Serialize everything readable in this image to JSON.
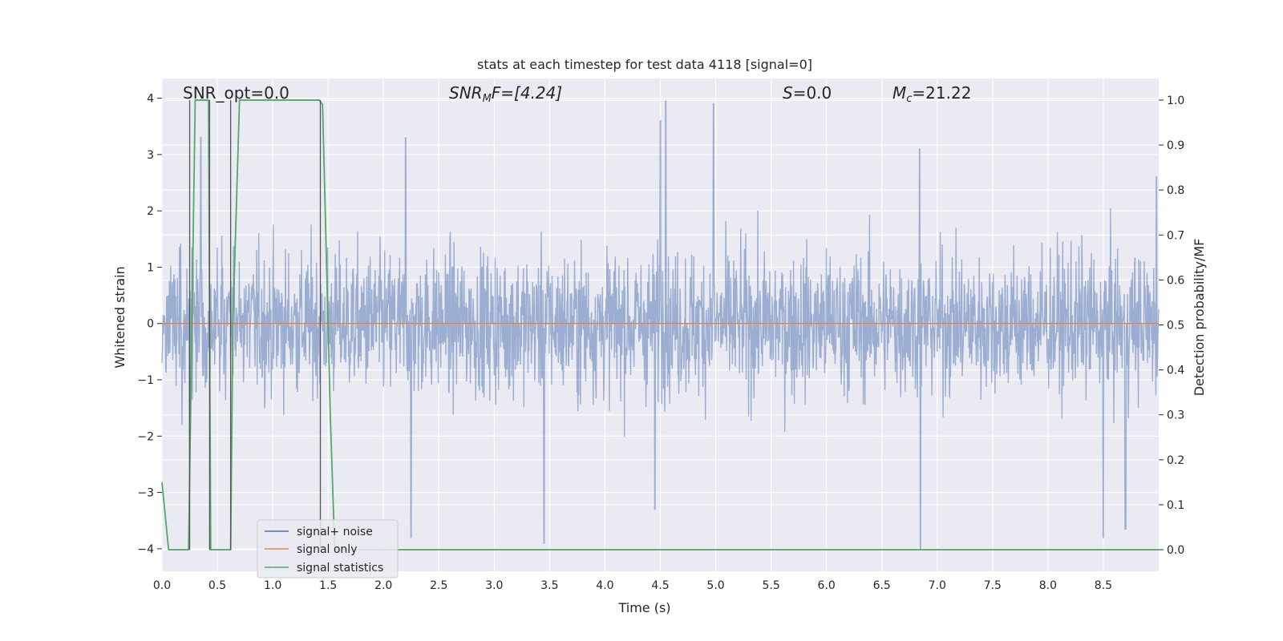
{
  "chart_data": {
    "type": "line",
    "title": "stats at each timestep for test data 4118 [signal=0]",
    "xlabel": "Time (s)",
    "ylabel": "Whitened strain",
    "y2label": "Detection probability/MF",
    "xlim": [
      0,
      9.0
    ],
    "ylim": [
      -4.4,
      4.35
    ],
    "y2lim": [
      -0.048,
      1.048
    ],
    "grid": true,
    "x_ticks": [
      0.0,
      0.5,
      1.0,
      1.5,
      2.0,
      2.5,
      3.0,
      3.5,
      4.0,
      4.5,
      5.0,
      5.5,
      6.0,
      6.5,
      7.0,
      7.5,
      8.0,
      8.5
    ],
    "x_tick_labels": [
      "0.0",
      "0.5",
      "1.0",
      "1.5",
      "2.0",
      "2.5",
      "3.0",
      "3.5",
      "4.0",
      "4.5",
      "5.0",
      "5.5",
      "6.0",
      "6.5",
      "7.0",
      "7.5",
      "8.0",
      "8.5"
    ],
    "y_ticks": [
      -4,
      -3,
      -2,
      -1,
      0,
      1,
      2,
      3,
      4
    ],
    "y_tick_labels": [
      "−4",
      "−3",
      "−2",
      "−1",
      "0",
      "1",
      "2",
      "3",
      "4"
    ],
    "y2_ticks": [
      0.0,
      0.1,
      0.2,
      0.3,
      0.4,
      0.5,
      0.6,
      0.7,
      0.8,
      0.9,
      1.0
    ],
    "y2_tick_labels": [
      "0.0",
      "0.1",
      "0.2",
      "0.3",
      "0.4",
      "0.5",
      "0.6",
      "0.7",
      "0.8",
      "0.9",
      "1.0"
    ],
    "annotations": {
      "snr_opt": "SNR_opt=0.0",
      "snr_mf_main": "SNR",
      "snr_mf_sub": "M",
      "snr_mf_rest": "F=[4.24]",
      "s_label": "S",
      "s_value": "=0.0",
      "mc_label": "M",
      "mc_sub": "c",
      "mc_value": "=21.22"
    },
    "legend_position": "lower-left",
    "series": [
      {
        "name": "signal+ noise",
        "color": "#4c72b0",
        "axis": "left",
        "description": "dense whitened noise trace, amplitude mostly within ±2.5, peaks near ±4",
        "envelope_peaks": [
          {
            "x": 0.25,
            "y": 3.1
          },
          {
            "x": 0.35,
            "y": 3.3
          },
          {
            "x": 2.2,
            "y": 3.3
          },
          {
            "x": 3.45,
            "y": 3.3
          },
          {
            "x": 4.5,
            "y": 3.6
          },
          {
            "x": 4.55,
            "y": 3.95
          },
          {
            "x": 4.98,
            "y": 3.9
          },
          {
            "x": 6.84,
            "y": 3.1
          },
          {
            "x": 8.98,
            "y": 2.6
          }
        ],
        "envelope_troughs": [
          {
            "x": 0.25,
            "y": -2.8
          },
          {
            "x": 2.25,
            "y": -3.8
          },
          {
            "x": 3.45,
            "y": -3.9
          },
          {
            "x": 4.45,
            "y": -3.3
          },
          {
            "x": 6.85,
            "y": -4.0
          },
          {
            "x": 8.5,
            "y": -3.8
          },
          {
            "x": 8.7,
            "y": -3.65
          }
        ]
      },
      {
        "name": "signal only",
        "color": "#dd8452",
        "axis": "left",
        "x": [
          0,
          9.0
        ],
        "y": [
          0,
          0
        ]
      },
      {
        "name": "signal statistics",
        "color": "#55a868",
        "axis": "right",
        "x": [
          0.0,
          0.06,
          0.2,
          0.24,
          0.3,
          0.42,
          0.44,
          0.48,
          0.56,
          0.62,
          0.64,
          0.7,
          1.42,
          1.45,
          1.52,
          1.56,
          9.0
        ],
        "y": [
          0.15,
          0.0,
          0.0,
          0.0,
          1.0,
          1.0,
          0.0,
          0.0,
          0.0,
          0.0,
          0.5,
          1.0,
          1.0,
          0.99,
          0.3,
          0.0,
          0.0
        ]
      }
    ],
    "vertical_markers": [
      0.25,
      0.43,
      0.62,
      1.43
    ]
  }
}
